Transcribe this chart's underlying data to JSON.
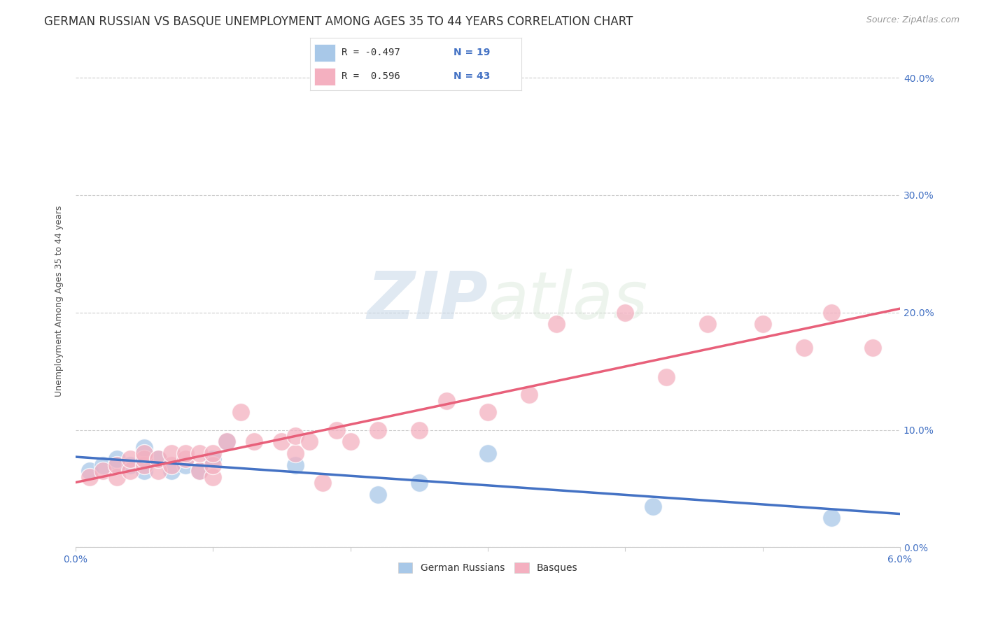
{
  "title": "GERMAN RUSSIAN VS BASQUE UNEMPLOYMENT AMONG AGES 35 TO 44 YEARS CORRELATION CHART",
  "source": "Source: ZipAtlas.com",
  "ylabel": "Unemployment Among Ages 35 to 44 years",
  "xmin": 0.0,
  "xmax": 0.06,
  "ymin": 0.0,
  "ymax": 0.42,
  "yticks": [
    0.0,
    0.1,
    0.2,
    0.3,
    0.4
  ],
  "ytick_labels": [
    "0.0%",
    "10.0%",
    "20.0%",
    "30.0%",
    "40.0%"
  ],
  "xtick_positions": [
    0.0,
    0.01,
    0.02,
    0.03,
    0.04,
    0.05,
    0.06
  ],
  "xtick_labels": [
    "0.0%",
    "",
    "",
    "",
    "",
    "",
    "6.0%"
  ],
  "watermark_zip": "ZIP",
  "watermark_atlas": "atlas",
  "german_russian_color": "#a8c8e8",
  "basque_color": "#f4b0c0",
  "german_russian_line_color": "#4472c4",
  "basque_line_color": "#e8607a",
  "german_russian_x": [
    0.001,
    0.002,
    0.003,
    0.003,
    0.004,
    0.005,
    0.005,
    0.006,
    0.007,
    0.008,
    0.009,
    0.01,
    0.011,
    0.016,
    0.022,
    0.025,
    0.03,
    0.042,
    0.055
  ],
  "german_russian_y": [
    0.065,
    0.07,
    0.07,
    0.075,
    0.07,
    0.085,
    0.065,
    0.075,
    0.065,
    0.07,
    0.065,
    0.075,
    0.09,
    0.07,
    0.045,
    0.055,
    0.08,
    0.035,
    0.025
  ],
  "basque_x": [
    0.001,
    0.002,
    0.003,
    0.003,
    0.004,
    0.004,
    0.005,
    0.005,
    0.005,
    0.006,
    0.006,
    0.007,
    0.007,
    0.008,
    0.008,
    0.009,
    0.009,
    0.01,
    0.01,
    0.01,
    0.011,
    0.012,
    0.013,
    0.015,
    0.016,
    0.016,
    0.017,
    0.018,
    0.019,
    0.02,
    0.022,
    0.025,
    0.027,
    0.03,
    0.033,
    0.035,
    0.04,
    0.043,
    0.046,
    0.05,
    0.053,
    0.055,
    0.058
  ],
  "basque_y": [
    0.06,
    0.065,
    0.06,
    0.07,
    0.065,
    0.075,
    0.07,
    0.075,
    0.08,
    0.065,
    0.075,
    0.07,
    0.08,
    0.075,
    0.08,
    0.065,
    0.08,
    0.06,
    0.07,
    0.08,
    0.09,
    0.115,
    0.09,
    0.09,
    0.08,
    0.095,
    0.09,
    0.055,
    0.1,
    0.09,
    0.1,
    0.1,
    0.125,
    0.115,
    0.13,
    0.19,
    0.2,
    0.145,
    0.19,
    0.19,
    0.17,
    0.2,
    0.17
  ],
  "background_color": "#ffffff",
  "grid_color": "#cccccc",
  "title_fontsize": 12,
  "source_fontsize": 9,
  "axis_label_fontsize": 9,
  "tick_fontsize": 10,
  "tick_color": "#4472c4",
  "title_color": "#333333",
  "source_color": "#999999",
  "axis_label_color": "#555555"
}
